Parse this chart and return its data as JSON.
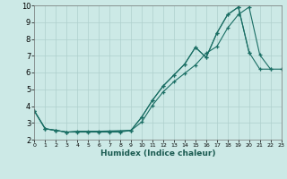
{
  "xlabel": "Humidex (Indice chaleur)",
  "bg_color": "#cce9e6",
  "grid_color": "#afd0cd",
  "line_color": "#1a6e64",
  "xlim": [
    0,
    23
  ],
  "ylim": [
    2,
    10
  ],
  "xticks": [
    0,
    1,
    2,
    3,
    4,
    5,
    6,
    7,
    8,
    9,
    10,
    11,
    12,
    13,
    14,
    15,
    16,
    17,
    18,
    19,
    20,
    21,
    22,
    23
  ],
  "yticks": [
    2,
    3,
    4,
    5,
    6,
    7,
    8,
    9,
    10
  ],
  "curve1_x": [
    0,
    1,
    2,
    3,
    4,
    5,
    6,
    7,
    8,
    9,
    10,
    11,
    12,
    13,
    14,
    15,
    16,
    17,
    18,
    19,
    20
  ],
  "curve1_y": [
    3.7,
    2.65,
    2.55,
    2.45,
    2.45,
    2.45,
    2.45,
    2.45,
    2.45,
    2.55,
    3.35,
    4.35,
    5.2,
    5.85,
    6.5,
    7.5,
    6.9,
    8.35,
    9.45,
    9.9,
    7.2
  ],
  "curve2_x": [
    0,
    1,
    2,
    3,
    4,
    5,
    6,
    7,
    8,
    9,
    10,
    11,
    12,
    13,
    14,
    15,
    16,
    17,
    18,
    19,
    20,
    21,
    22
  ],
  "curve2_y": [
    3.7,
    2.65,
    2.55,
    2.45,
    2.5,
    2.5,
    2.5,
    2.5,
    2.5,
    2.55,
    3.35,
    4.35,
    5.2,
    5.85,
    6.5,
    7.5,
    6.9,
    8.35,
    9.45,
    9.9,
    7.2,
    6.2,
    6.2
  ],
  "curve3_x": [
    0,
    1,
    2,
    3,
    9,
    10,
    11,
    12,
    13,
    14,
    15,
    16,
    17,
    18,
    19,
    20,
    21,
    22,
    23
  ],
  "curve3_y": [
    3.7,
    2.65,
    2.55,
    2.45,
    2.55,
    3.05,
    4.05,
    4.85,
    5.45,
    5.95,
    6.45,
    7.15,
    7.55,
    8.65,
    9.45,
    9.9,
    7.05,
    6.2,
    6.2
  ]
}
